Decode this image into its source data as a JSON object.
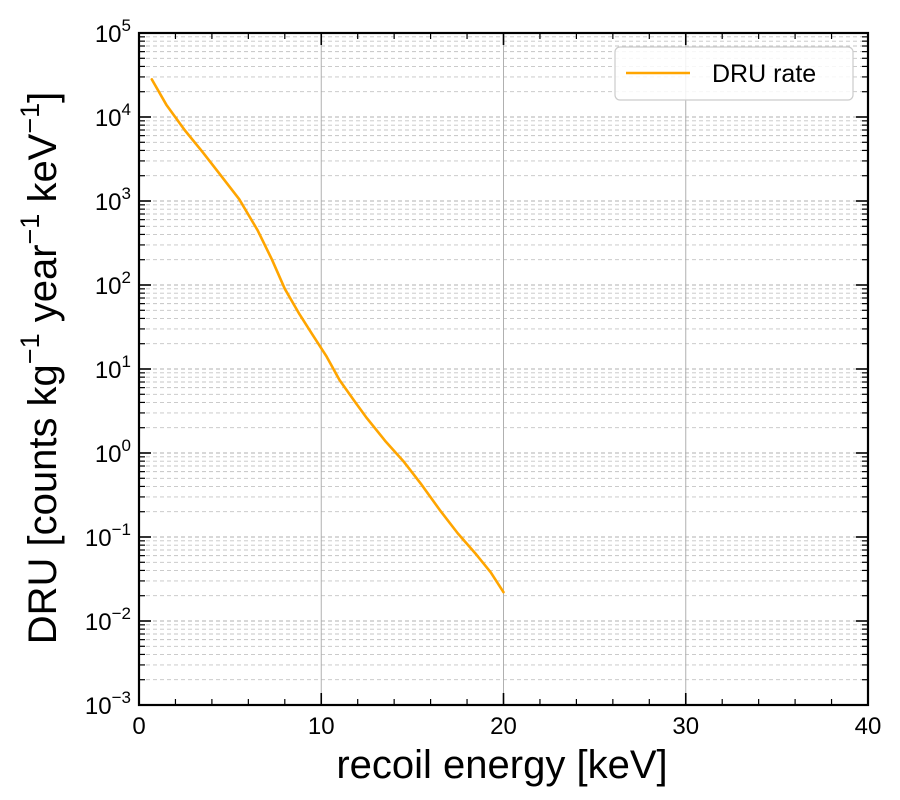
{
  "chart_data": {
    "type": "line",
    "title": "",
    "xlabel": "recoil energy [keV]",
    "ylabel": {
      "parts": [
        "DRU [counts kg",
        "−1",
        " year",
        "−1",
        " keV",
        "−1",
        "]"
      ]
    },
    "xlim": [
      0,
      40
    ],
    "ylim": [
      0.001,
      100000
    ],
    "yscale": "log",
    "grid": true,
    "x_ticks": [
      "0",
      "10",
      "20",
      "30",
      "40"
    ],
    "y_ticks": [
      {
        "base": "10",
        "exp": "−3"
      },
      {
        "base": "10",
        "exp": "−2"
      },
      {
        "base": "10",
        "exp": "−1"
      },
      {
        "base": "10",
        "exp": "0"
      },
      {
        "base": "10",
        "exp": "1"
      },
      {
        "base": "10",
        "exp": "2"
      },
      {
        "base": "10",
        "exp": "3"
      },
      {
        "base": "10",
        "exp": "4"
      },
      {
        "base": "10",
        "exp": "5"
      }
    ],
    "legend": {
      "position": "top-right"
    },
    "series": [
      {
        "name": "DRU rate",
        "color": "#ffa500",
        "x": [
          0.7,
          1.5,
          2.5,
          3.5,
          4.5,
          5.5,
          6.5,
          7.3,
          8.0,
          8.8,
          9.5,
          10.3,
          11.0,
          11.8,
          12.5,
          13.5,
          14.5,
          15.5,
          16.5,
          17.5,
          18.5,
          19.3,
          20.0
        ],
        "y": [
          28000,
          14000,
          7000,
          3800,
          2000,
          1050,
          450,
          200,
          90,
          45,
          26,
          14,
          7.4,
          4.2,
          2.6,
          1.4,
          0.8,
          0.42,
          0.21,
          0.11,
          0.062,
          0.038,
          0.022
        ]
      }
    ]
  }
}
